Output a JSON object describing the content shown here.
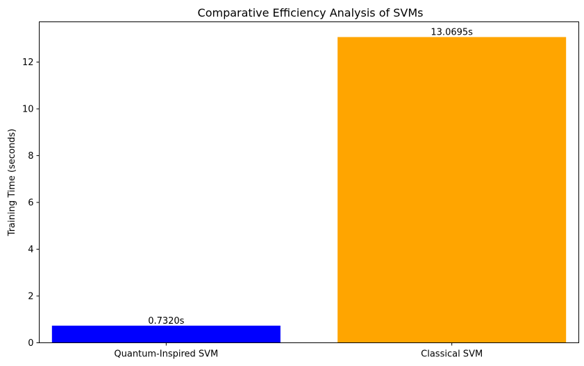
{
  "chart_data": {
    "type": "bar",
    "title": "Comparative Efficiency Analysis of SVMs",
    "xlabel": "",
    "ylabel": "Training Time (seconds)",
    "categories": [
      "Quantum-Inspired SVM",
      "Classical SVM"
    ],
    "values": [
      0.732,
      13.0695
    ],
    "data_labels": [
      "0.7320s",
      "13.0695s"
    ],
    "colors": [
      "#0000ff",
      "#ffa500"
    ],
    "ylim": [
      0,
      13.72
    ],
    "yticks": [
      0,
      2,
      4,
      6,
      8,
      10,
      12
    ],
    "grid": false
  }
}
